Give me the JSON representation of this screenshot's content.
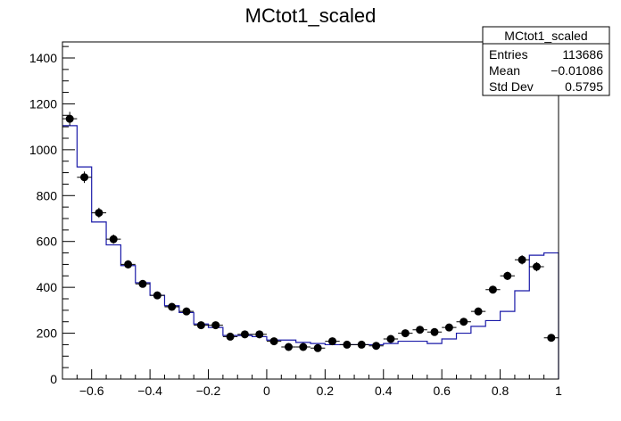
{
  "chart_data": {
    "type": "histogram",
    "title": "MCtot1_scaled",
    "xlabel": "",
    "ylabel": "",
    "xlim": [
      -0.7,
      1.0
    ],
    "ylim": [
      0,
      1470
    ],
    "x_ticks": [
      -0.6,
      -0.4,
      -0.2,
      0,
      0.2,
      0.4,
      0.6,
      0.8,
      1
    ],
    "x_tick_labels": [
      "−0.6",
      "−0.4",
      "−0.2",
      "0",
      "0.2",
      "0.4",
      "0.6",
      "0.8",
      "1"
    ],
    "y_ticks": [
      0,
      200,
      400,
      600,
      800,
      1000,
      1200,
      1400
    ],
    "y_tick_labels": [
      "0",
      "200",
      "400",
      "600",
      "800",
      "1000",
      "1200",
      "1400"
    ],
    "bin_edges": [
      -0.7,
      -0.65,
      -0.6,
      -0.55,
      -0.5,
      -0.45,
      -0.4,
      -0.35,
      -0.3,
      -0.25,
      -0.2,
      -0.15,
      -0.1,
      -0.05,
      0.0,
      0.05,
      0.1,
      0.15,
      0.2,
      0.25,
      0.3,
      0.35,
      0.4,
      0.45,
      0.5,
      0.55,
      0.6,
      0.65,
      0.7,
      0.75,
      0.8,
      0.85,
      0.9,
      0.95,
      1.0
    ],
    "series": [
      {
        "kind": "histogram-step",
        "color": "#1a1aa8",
        "values": [
          1105,
          925,
          685,
          585,
          495,
          420,
          365,
          320,
          290,
          240,
          225,
          190,
          190,
          185,
          170,
          170,
          160,
          155,
          150,
          150,
          150,
          150,
          155,
          165,
          165,
          155,
          175,
          200,
          230,
          255,
          295,
          385,
          540,
          550
        ]
      },
      {
        "kind": "points-with-errors",
        "color": "#000000",
        "values": [
          1135,
          880,
          725,
          610,
          500,
          415,
          365,
          315,
          295,
          235,
          235,
          185,
          195,
          195,
          165,
          140,
          140,
          135,
          165,
          150,
          150,
          145,
          175,
          200,
          215,
          205,
          225,
          250,
          295,
          390,
          450,
          520,
          490,
          180
        ],
        "errors": [
          30,
          25,
          22,
          20,
          18,
          16,
          14,
          13,
          13,
          12,
          12,
          11,
          11,
          11,
          10,
          10,
          10,
          10,
          10,
          10,
          10,
          10,
          11,
          12,
          12,
          12,
          12,
          13,
          14,
          16,
          18,
          20,
          20,
          12
        ]
      }
    ],
    "stats_box": {
      "title": "MCtot1_scaled",
      "rows": [
        {
          "label": "Entries",
          "value": "113686"
        },
        {
          "label": "Mean",
          "value": "−0.01086"
        },
        {
          "label": "Std Dev",
          "value": "0.5795"
        }
      ]
    }
  }
}
